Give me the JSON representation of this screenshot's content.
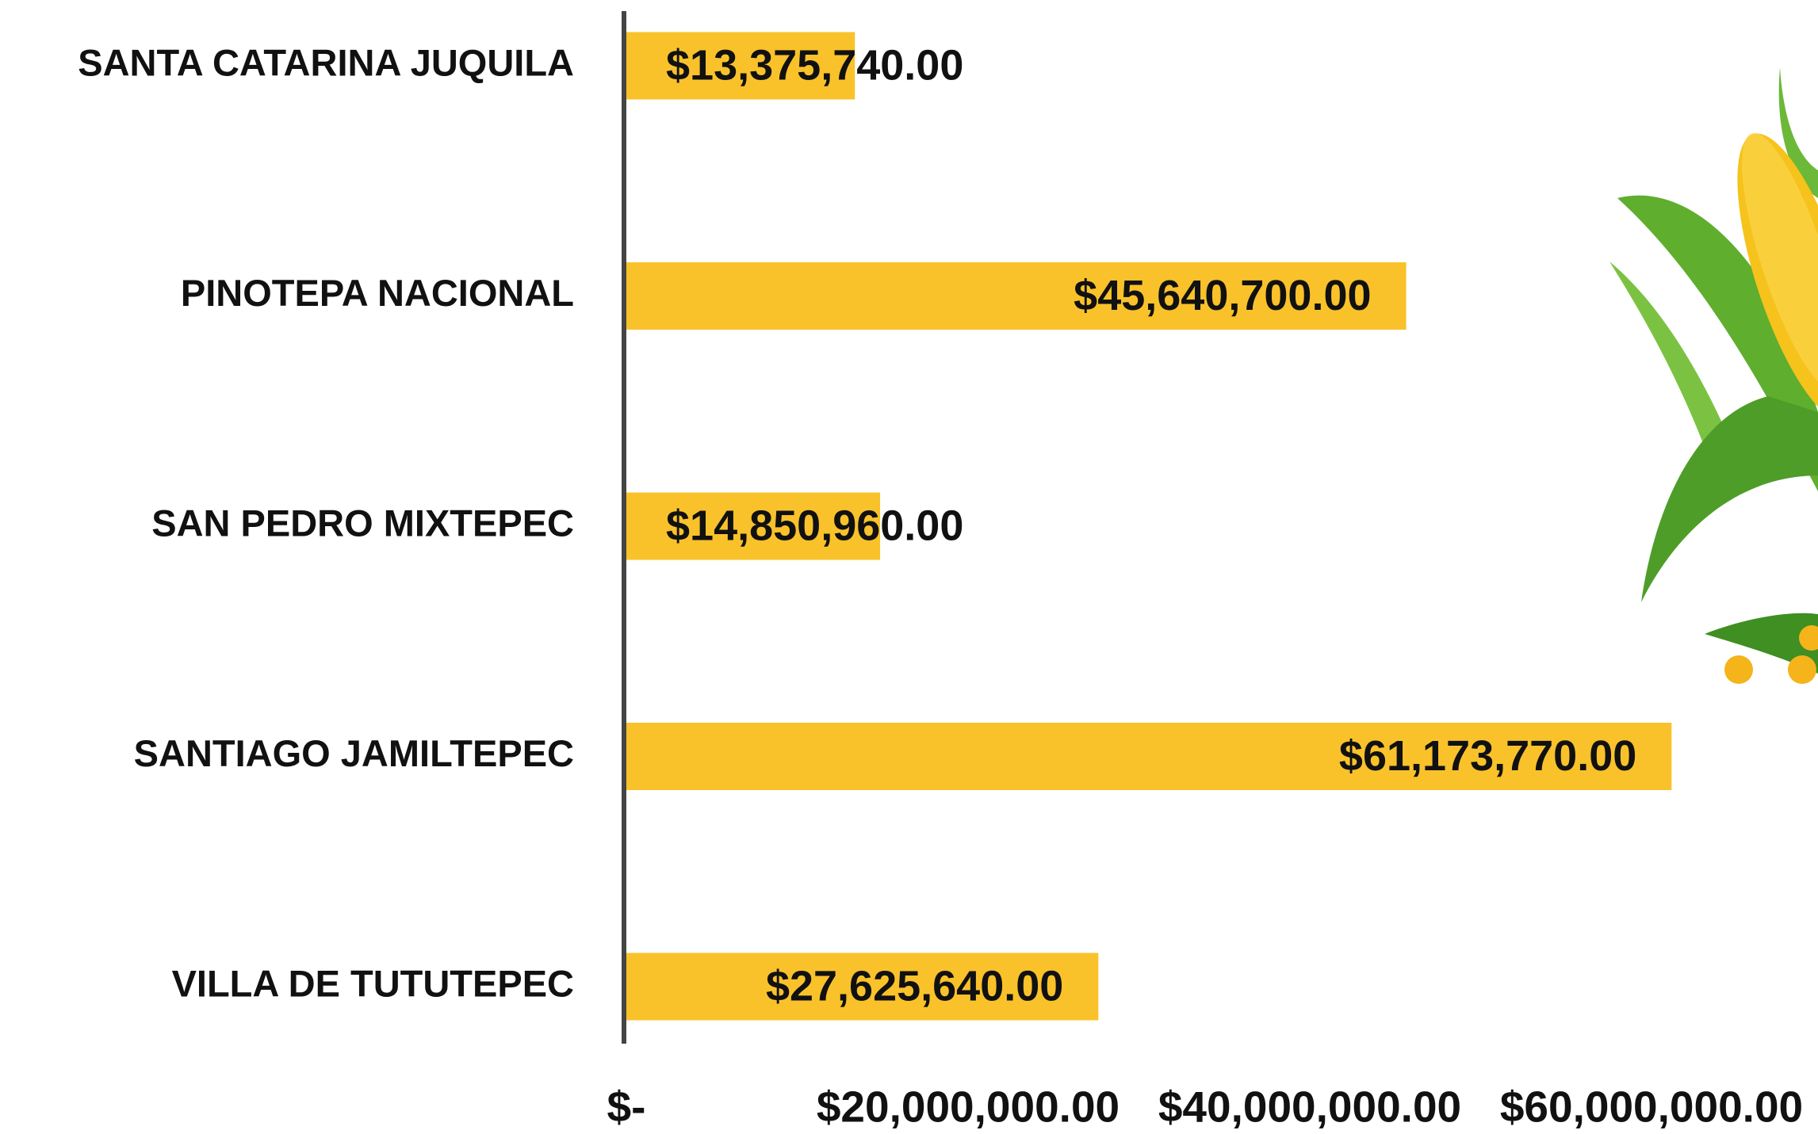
{
  "chart_data": {
    "type": "bar",
    "orientation": "horizontal",
    "categories": [
      "SANTA CATARINA JUQUILA",
      "PINOTEPA NACIONAL",
      "SAN PEDRO MIXTEPEC",
      "SANTIAGO JAMILTEPEC",
      "VILLA DE TUTUTEPEC"
    ],
    "values": [
      13375740,
      45640700,
      14850960,
      61173770,
      27625640
    ],
    "value_labels": [
      "$13,375,740.00",
      "$45,640,700.00",
      "$14,850,960.00",
      "$61,173,770.00",
      "$27,625,640.00"
    ],
    "color": "#f9c22b",
    "xlim": [
      0,
      70000000
    ],
    "xticks": [
      {
        "value": 0,
        "label": "$-"
      },
      {
        "value": 20000000,
        "label": "$20,000,000.00"
      },
      {
        "value": 40000000,
        "label": "$40,000,000.00"
      },
      {
        "value": 60000000,
        "label": "$60,000,000.00"
      }
    ],
    "grid": false
  }
}
